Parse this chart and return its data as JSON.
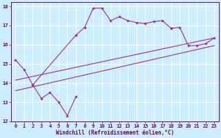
{
  "bg_color": "#cceeff",
  "line_color": "#993399",
  "grid_color": "#ffffff",
  "xlim": [
    -0.5,
    23.5
  ],
  "ylim": [
    12,
    18.2
  ],
  "xticks": [
    0,
    1,
    2,
    3,
    4,
    5,
    6,
    7,
    8,
    9,
    10,
    11,
    12,
    13,
    14,
    15,
    16,
    17,
    18,
    19,
    20,
    21,
    22,
    23
  ],
  "yticks": [
    12,
    13,
    14,
    15,
    16,
    17,
    18
  ],
  "xlabel": "Windchill (Refroidissement éolien,°C)",
  "series": [
    {
      "x": [
        0,
        1,
        2,
        3,
        4,
        5,
        6,
        7
      ],
      "y": [
        15.2,
        14.7,
        13.9,
        13.2,
        13.5,
        13.0,
        12.3,
        13.3
      ],
      "marker": true
    },
    {
      "x": [
        2,
        7,
        8,
        9,
        10,
        11,
        12,
        13,
        14,
        15,
        16,
        17,
        18
      ],
      "y": [
        13.9,
        16.5,
        16.9,
        17.9,
        17.9,
        17.25,
        17.45,
        17.25,
        17.15,
        17.1,
        17.2,
        17.25,
        16.85
      ],
      "marker": true
    },
    {
      "x": [
        18,
        19,
        20,
        21,
        22,
        23
      ],
      "y": [
        16.85,
        16.9,
        15.95,
        15.95,
        16.05,
        16.35
      ],
      "marker": true
    },
    {
      "x": [
        0,
        23
      ],
      "y": [
        13.6,
        15.95
      ],
      "marker": false
    },
    {
      "x": [
        0,
        23
      ],
      "y": [
        14.15,
        16.35
      ],
      "marker": false
    }
  ]
}
